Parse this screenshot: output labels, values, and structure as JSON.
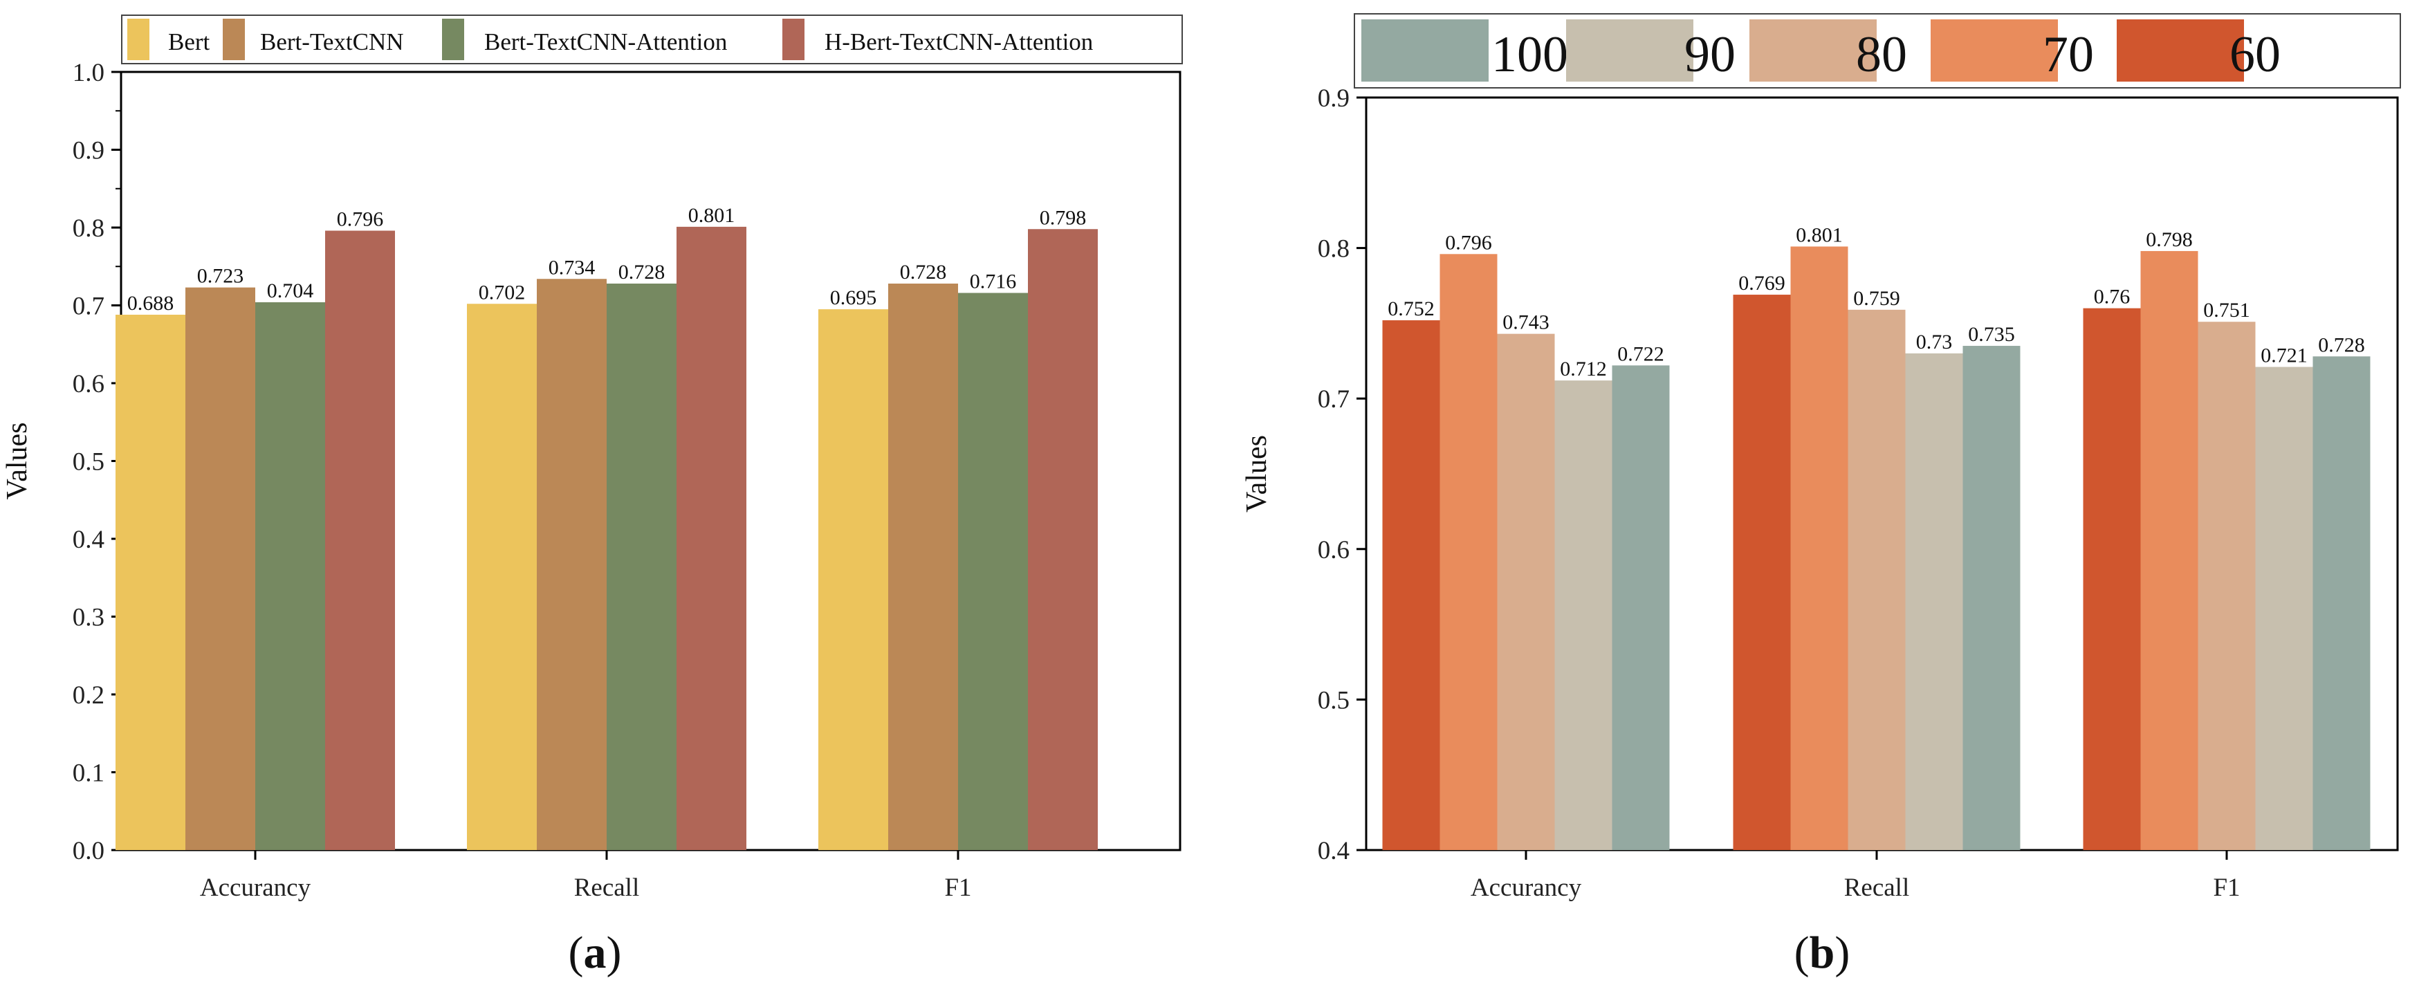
{
  "chart_data": [
    {
      "panel_id": "a",
      "type": "bar",
      "panel_label": "a",
      "categories": [
        "Accurancy",
        "Recall",
        "F1"
      ],
      "series": [
        {
          "name": "Bert",
          "color": "#ecc45c",
          "values": [
            0.688,
            0.702,
            0.695
          ]
        },
        {
          "name": "Bert-TextCNN",
          "color": "#bb8856",
          "values": [
            0.723,
            0.734,
            0.728
          ]
        },
        {
          "name": "Bert-TextCNN-Attention",
          "color": "#768961",
          "values": [
            0.704,
            0.728,
            0.716
          ]
        },
        {
          "name": "H-Bert-TextCNN-Attention",
          "color": "#b06657",
          "values": [
            0.796,
            0.801,
            0.798
          ]
        }
      ],
      "value_labels": [
        [
          "0.688",
          "0.702",
          "0.695"
        ],
        [
          "0.723",
          "0.734",
          "0.728"
        ],
        [
          "0.704",
          "0.728",
          "0.716"
        ],
        [
          "0.796",
          "0.801",
          "0.798"
        ]
      ],
      "ylabel": "Values",
      "xlabel": "",
      "ylim": [
        0.0,
        1.0
      ],
      "yticks": [
        "0.0",
        "0.1",
        "0.2",
        "0.3",
        "0.4",
        "0.5",
        "0.6",
        "0.7",
        "0.8",
        "0.9",
        "1.0"
      ],
      "legend_position": "top"
    },
    {
      "panel_id": "b",
      "type": "bar",
      "panel_label": "b",
      "categories": [
        "Accurancy",
        "Recall",
        "F1"
      ],
      "series": [
        {
          "name": "60",
          "color": "#d0562e",
          "values": [
            0.752,
            0.769,
            0.76
          ]
        },
        {
          "name": "70",
          "color": "#e98c5c",
          "values": [
            0.796,
            0.801,
            0.798
          ]
        },
        {
          "name": "80",
          "color": "#d9ad8e",
          "values": [
            0.743,
            0.759,
            0.751
          ]
        },
        {
          "name": "90",
          "color": "#c7bfae",
          "values": [
            0.712,
            0.73,
            0.721
          ]
        },
        {
          "name": "100",
          "color": "#94a9a1",
          "values": [
            0.722,
            0.735,
            0.728
          ]
        }
      ],
      "value_labels": [
        [
          "0.752",
          "0.769",
          "0.76"
        ],
        [
          "0.796",
          "0.801",
          "0.798"
        ],
        [
          "0.743",
          "0.759",
          "0.751"
        ],
        [
          "0.712",
          "0.73",
          "0.721"
        ],
        [
          "0.722",
          "0.735",
          "0.728"
        ]
      ],
      "legend_order": [
        "100",
        "90",
        "80",
        "70",
        "60"
      ],
      "ylabel": "Values",
      "xlabel": "",
      "ylim": [
        0.4,
        0.9
      ],
      "yticks": [
        "0.4",
        "0.5",
        "0.6",
        "0.7",
        "0.8",
        "0.9"
      ],
      "legend_position": "top"
    }
  ]
}
